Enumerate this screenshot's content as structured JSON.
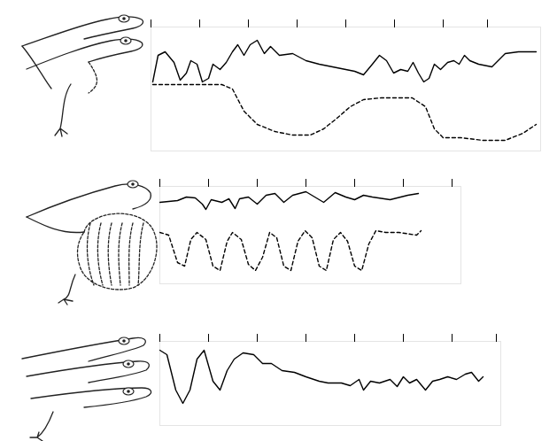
{
  "chart_data": [
    {
      "type": "line",
      "xlim": [
        0,
        440
      ],
      "xticks": [
        0,
        55,
        110,
        165,
        220,
        275,
        330,
        380
      ],
      "ylim": [
        0,
        14
      ],
      "tick_labels": false,
      "series": [
        {
          "color": "#000000",
          "line_style": "solid",
          "x": [
            2,
            8,
            16,
            26,
            33,
            40,
            45,
            52,
            58,
            65,
            70,
            78,
            85,
            92,
            98,
            105,
            112,
            120,
            128,
            135,
            145,
            160,
            175,
            190,
            205,
            220,
            230,
            240,
            250,
            258,
            266,
            274,
            282,
            290,
            296,
            302,
            308,
            314,
            320,
            327,
            335,
            342,
            348,
            354,
            360,
            370,
            385,
            400,
            415,
            435
          ],
          "values": [
            7.8,
            10.8,
            11.2,
            10,
            8,
            8.8,
            10.2,
            9.8,
            7.8,
            8.2,
            9.8,
            9.2,
            10,
            11.2,
            12,
            10.8,
            12,
            12.5,
            11,
            11.8,
            10.8,
            11,
            10.2,
            9.8,
            9.5,
            9.2,
            9,
            8.6,
            9.8,
            10.8,
            10.2,
            8.8,
            9.2,
            9,
            10,
            8.8,
            7.8,
            8.2,
            9.8,
            9.2,
            10,
            10.2,
            9.8,
            10.8,
            10.2,
            9.8,
            9.5,
            11,
            11.2,
            11.2
          ]
        },
        {
          "color": "#000000",
          "line_style": "dashed",
          "x": [
            2,
            80,
            92,
            105,
            120,
            140,
            160,
            180,
            195,
            210,
            225,
            240,
            260,
            295,
            310,
            320,
            330,
            350,
            375,
            400,
            420,
            435
          ],
          "values": [
            7.5,
            7.5,
            7,
            4.5,
            3,
            2.2,
            1.8,
            1.8,
            2.5,
            3.7,
            5,
            5.8,
            6,
            6,
            5,
            2.5,
            1.5,
            1.5,
            1.2,
            1.2,
            2,
            3
          ]
        }
      ]
    },
    {
      "type": "line",
      "xlim": [
        0,
        340
      ],
      "xticks": [
        0,
        55,
        110,
        165,
        220,
        275,
        330
      ],
      "ylim": [
        0,
        11
      ],
      "tick_labels": false,
      "series": [
        {
          "color": "#000000",
          "line_style": "solid",
          "x": [
            0,
            20,
            30,
            40,
            48,
            52,
            58,
            70,
            78,
            85,
            90,
            100,
            110,
            120,
            130,
            140,
            150,
            165,
            175,
            185,
            198,
            210,
            220,
            230,
            240,
            260,
            280,
            292
          ],
          "values": [
            9.2,
            9.4,
            9.8,
            9.7,
            9,
            8.4,
            9.5,
            9.2,
            9.6,
            8.5,
            9.6,
            9.8,
            9,
            10,
            10.2,
            9.2,
            10,
            10.4,
            9.8,
            9.2,
            10.3,
            9.8,
            9.5,
            10,
            9.8,
            9.5,
            10,
            10.2
          ]
        },
        {
          "color": "#000000",
          "line_style": "dashed",
          "x": [
            0,
            10,
            20,
            28,
            35,
            42,
            52,
            60,
            68,
            76,
            82,
            92,
            100,
            108,
            116,
            124,
            132,
            140,
            148,
            156,
            164,
            172,
            180,
            188,
            196,
            204,
            212,
            220,
            228,
            236,
            244,
            255,
            270,
            290,
            295
          ],
          "values": [
            5.8,
            5.5,
            2.4,
            2,
            5,
            5.8,
            5,
            2,
            1.5,
            4.8,
            5.8,
            5,
            2.2,
            1.5,
            3,
            5.8,
            5.2,
            2,
            1.5,
            4.8,
            6,
            5.2,
            2,
            1.5,
            5,
            5.8,
            4.8,
            2,
            1.5,
            4.5,
            6,
            5.8,
            5.8,
            5.5,
            6
          ]
        }
      ]
    },
    {
      "type": "line",
      "xlim": [
        0,
        385
      ],
      "xticks": [
        0,
        55,
        110,
        165,
        220,
        275,
        330,
        380
      ],
      "ylim": [
        0,
        9.5
      ],
      "tick_labels": false,
      "series": [
        {
          "color": "#000000",
          "line_style": "solid",
          "x": [
            0,
            8,
            18,
            26,
            34,
            42,
            50,
            60,
            68,
            76,
            84,
            94,
            106,
            116,
            126,
            138,
            152,
            165,
            180,
            190,
            205,
            215,
            225,
            230,
            238,
            248,
            260,
            268,
            275,
            282,
            290,
            300,
            308,
            316,
            325,
            335,
            345,
            352,
            360,
            365
          ],
          "values": [
            8.5,
            8,
            4,
            2.5,
            4,
            7.5,
            8.5,
            5,
            4,
            6.2,
            7.5,
            8.2,
            8,
            7,
            7,
            6.2,
            6,
            5.5,
            5,
            4.8,
            4.8,
            4.5,
            5.2,
            4,
            5,
            4.8,
            5.2,
            4.4,
            5.5,
            4.8,
            5.2,
            4,
            5,
            5.2,
            5.5,
            5.2,
            5.8,
            6,
            5,
            5.5
          ]
        }
      ]
    }
  ]
}
